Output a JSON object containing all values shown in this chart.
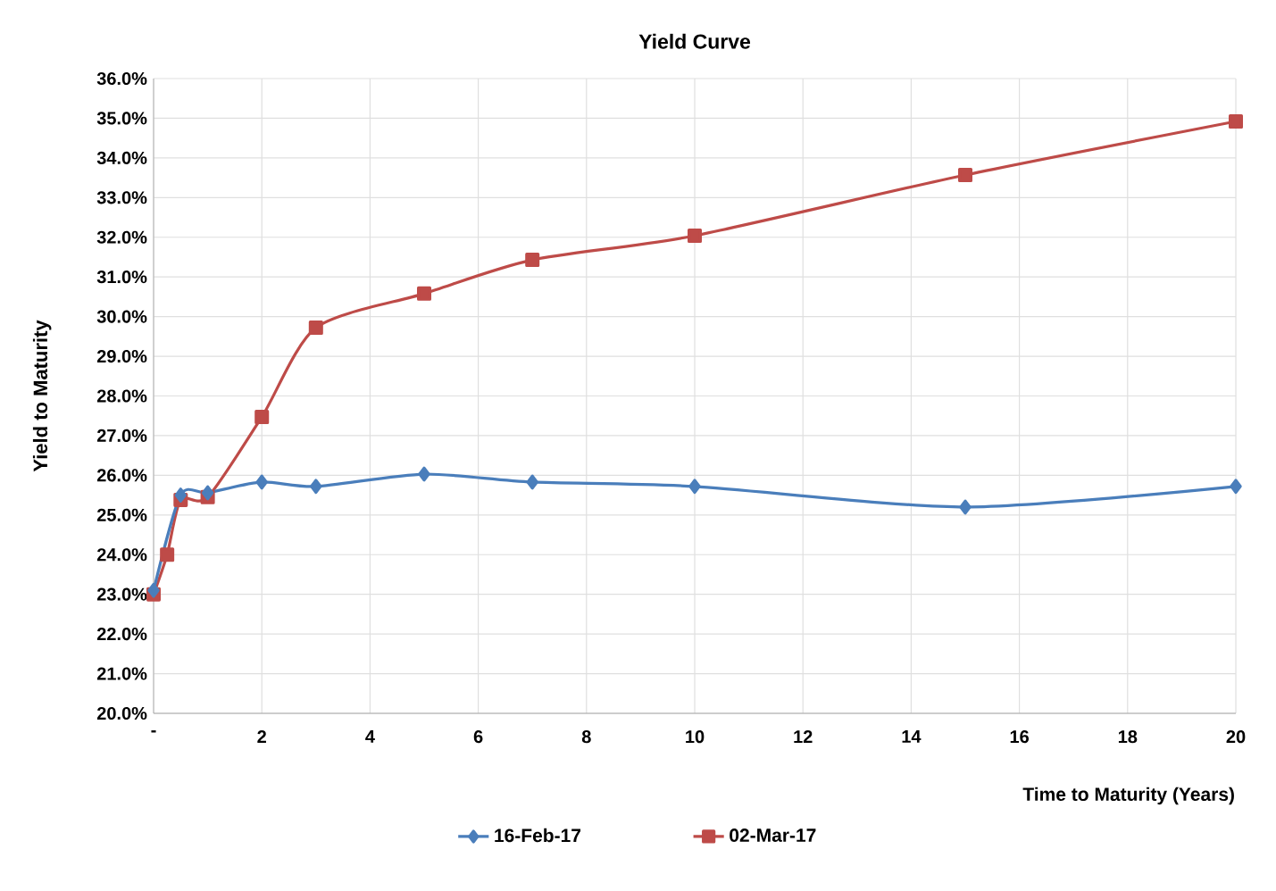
{
  "chart_data": {
    "type": "line",
    "title": "Yield Curve",
    "xlabel": "Time to Maturity (Years)",
    "ylabel": "Yield to Maturity",
    "series": [
      {
        "name": "16-Feb-17",
        "color": "#4a7ebb",
        "marker": "diamond",
        "x": [
          0,
          0.5,
          1,
          2,
          3,
          5,
          7,
          10,
          15,
          20
        ],
        "values": [
          23.1,
          25.5,
          25.56,
          25.83,
          25.72,
          26.03,
          25.83,
          25.72,
          25.2,
          25.72
        ]
      },
      {
        "name": "02-Mar-17",
        "color": "#be4b48",
        "marker": "square",
        "x": [
          0,
          0.25,
          0.5,
          1,
          2,
          3,
          5,
          7,
          10,
          15,
          20
        ],
        "values": [
          23.0,
          24.0,
          25.38,
          25.45,
          27.47,
          29.72,
          30.58,
          31.43,
          32.04,
          33.57,
          34.92
        ]
      }
    ],
    "xlim": [
      0,
      20
    ],
    "ylim": [
      20,
      36
    ],
    "xticks": [
      {
        "value": 0,
        "label": "-"
      },
      2,
      4,
      6,
      8,
      10,
      12,
      14,
      16,
      18,
      20
    ],
    "yticks": [
      {
        "value": 20,
        "label": "20.0%"
      },
      {
        "value": 21,
        "label": "21.0%"
      },
      {
        "value": 22,
        "label": "22.0%"
      },
      {
        "value": 23,
        "label": "23.0%"
      },
      {
        "value": 24,
        "label": "24.0%"
      },
      {
        "value": 25,
        "label": "25.0%"
      },
      {
        "value": 26,
        "label": "26.0%"
      },
      {
        "value": 27,
        "label": "27.0%"
      },
      {
        "value": 28,
        "label": "28.0%"
      },
      {
        "value": 29,
        "label": "29.0%"
      },
      {
        "value": 30,
        "label": "30.0%"
      },
      {
        "value": 31,
        "label": "31.0%"
      },
      {
        "value": 32,
        "label": "32.0%"
      },
      {
        "value": 33,
        "label": "33.0%"
      },
      {
        "value": 34,
        "label": "34.0%"
      },
      {
        "value": 35,
        "label": "35.0%"
      },
      {
        "value": 36,
        "label": "36.0%"
      }
    ],
    "grid": true,
    "legend": "bottom",
    "line_style": "solid"
  }
}
